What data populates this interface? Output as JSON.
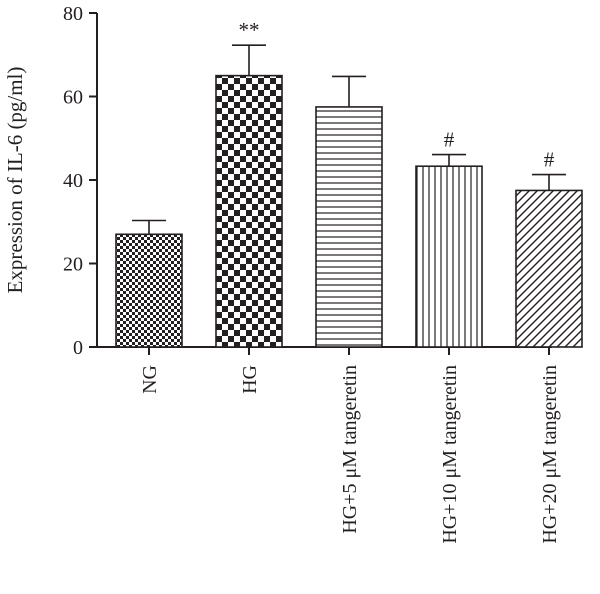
{
  "chart_data": {
    "type": "bar",
    "ylabel": "Expression of IL-6 (pg/ml)",
    "ylim": [
      0,
      80
    ],
    "yticks": [
      0,
      20,
      40,
      60,
      80
    ],
    "grid": false,
    "categories": [
      "NG",
      "HG",
      "HG+5 μM tangeretin",
      "HG+10 μM tangeretin",
      "HG+20 μM tangeretin"
    ],
    "values": [
      27,
      65,
      57.5,
      43.3,
      37.5
    ],
    "errors": [
      3.3,
      7.3,
      7.3,
      2.8,
      3.8
    ],
    "annotations": [
      "",
      "**",
      "",
      "#",
      "#"
    ],
    "patterns": [
      "fine-checker",
      "checker",
      "horizontal-lines",
      "vertical-lines",
      "diagonal-lines"
    ],
    "colors": {
      "ink": "#231f20",
      "background": "#ffffff"
    }
  }
}
